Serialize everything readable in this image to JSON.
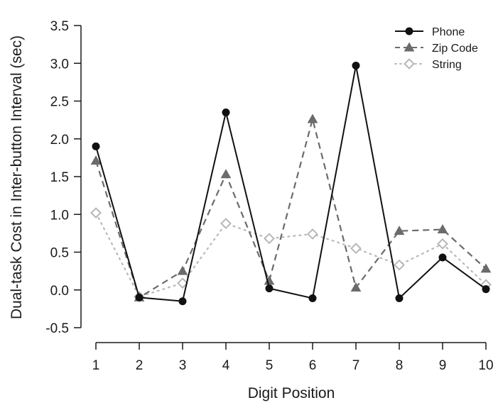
{
  "chart_data": {
    "type": "line",
    "title": "",
    "xlabel": "Digit Position",
    "ylabel": "Dual-task Cost in Inter-button Interval (sec)",
    "x": [
      1,
      2,
      3,
      4,
      5,
      6,
      7,
      8,
      9,
      10
    ],
    "x_tick_labels": [
      "1",
      "2",
      "3",
      "4",
      "5",
      "6",
      "7",
      "8",
      "9",
      "10"
    ],
    "y_tick_labels": [
      "-0.5",
      "0.0",
      "0.5",
      "1.0",
      "1.5",
      "2.0",
      "2.5",
      "3.0",
      "3.5"
    ],
    "ylim": [
      -0.5,
      3.5
    ],
    "xlim": [
      1,
      10
    ],
    "grid": false,
    "legend_position": "top-right",
    "series": [
      {
        "name": "Phone",
        "values": [
          1.9,
          -0.1,
          -0.15,
          2.35,
          0.02,
          -0.11,
          2.97,
          -0.11,
          0.43,
          0.01
        ],
        "color": "#111111",
        "line_style": "solid",
        "marker": "filled-circle"
      },
      {
        "name": "Zip Code",
        "values": [
          1.71,
          -0.1,
          0.25,
          1.53,
          0.12,
          2.26,
          0.03,
          0.78,
          0.8,
          0.28
        ],
        "color": "#6b6b6b",
        "line_style": "dashed",
        "marker": "filled-triangle"
      },
      {
        "name": "String",
        "values": [
          1.02,
          -0.09,
          0.09,
          0.88,
          0.68,
          0.74,
          0.55,
          0.33,
          0.61,
          0.07
        ],
        "color": "#b8b8b8",
        "line_style": "dotted",
        "marker": "open-diamond"
      }
    ]
  }
}
